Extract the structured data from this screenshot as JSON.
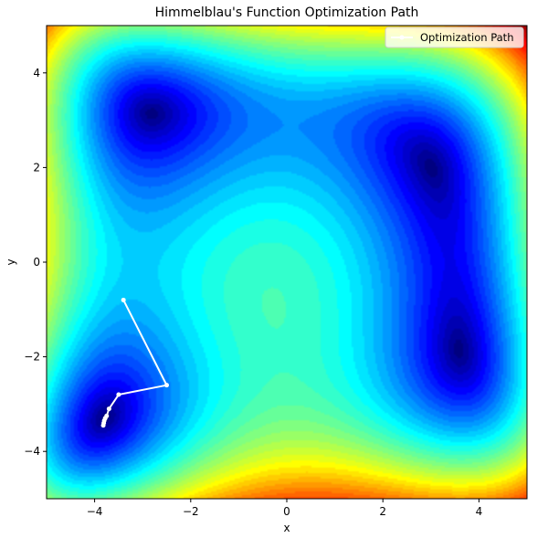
{
  "chart_data": {
    "type": "contour",
    "title": "Himmelblau's Function Optimization Path",
    "xlabel": "x",
    "ylabel": "y",
    "xlim": [
      -5,
      5
    ],
    "ylim": [
      -5,
      5
    ],
    "xticks": [
      -4,
      -2,
      0,
      2,
      4
    ],
    "yticks": [
      -4,
      -2,
      0,
      2,
      4
    ],
    "xtick_labels": [
      "−4",
      "−2",
      "0",
      "2",
      "4"
    ],
    "ytick_labels": [
      "−4",
      "−2",
      "0",
      "2",
      "4"
    ],
    "colormap": "jet",
    "function": "(x^2 + y - 11)^2 + (x + y^2 - 7)^2",
    "grid": false,
    "legend_position": "top-right",
    "series": [
      {
        "name": "Optimization Path",
        "color": "#ffffff",
        "x": [
          -3.4,
          -2.5,
          -3.5,
          -3.7,
          -3.75,
          -3.78,
          -3.8,
          -3.81,
          -3.82
        ],
        "y": [
          -0.8,
          -2.6,
          -2.8,
          -3.1,
          -3.25,
          -3.3,
          -3.35,
          -3.4,
          -3.45
        ]
      }
    ]
  }
}
